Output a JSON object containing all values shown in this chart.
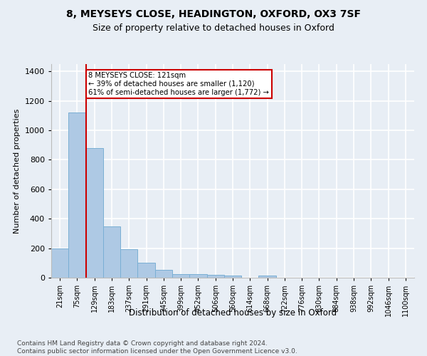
{
  "title1": "8, MEYSEYS CLOSE, HEADINGTON, OXFORD, OX3 7SF",
  "title2": "Size of property relative to detached houses in Oxford",
  "xlabel": "Distribution of detached houses by size in Oxford",
  "ylabel": "Number of detached properties",
  "footnote": "Contains HM Land Registry data © Crown copyright and database right 2024.\nContains public sector information licensed under the Open Government Licence v3.0.",
  "bar_labels": [
    "21sqm",
    "75sqm",
    "129sqm",
    "183sqm",
    "237sqm",
    "291sqm",
    "345sqm",
    "399sqm",
    "452sqm",
    "506sqm",
    "560sqm",
    "614sqm",
    "668sqm",
    "722sqm",
    "776sqm",
    "830sqm",
    "884sqm",
    "938sqm",
    "992sqm",
    "1046sqm",
    "1100sqm"
  ],
  "bar_values": [
    197,
    1120,
    878,
    350,
    192,
    100,
    55,
    25,
    25,
    20,
    15,
    0,
    15,
    0,
    0,
    0,
    0,
    0,
    0,
    0,
    0
  ],
  "bar_color": "#aec9e4",
  "bar_edge_color": "#7aafd4",
  "vline_color": "#cc0000",
  "annotation_text": "8 MEYSEYS CLOSE: 121sqm\n← 39% of detached houses are smaller (1,120)\n61% of semi-detached houses are larger (1,772) →",
  "annotation_box_color": "#ffffff",
  "annotation_box_edge": "#cc0000",
  "ylim": [
    0,
    1450
  ],
  "yticks": [
    0,
    200,
    400,
    600,
    800,
    1000,
    1200,
    1400
  ],
  "background_color": "#e8eef5",
  "grid_color": "#ffffff",
  "title1_fontsize": 10,
  "title2_fontsize": 9,
  "footnote_fontsize": 6.5
}
